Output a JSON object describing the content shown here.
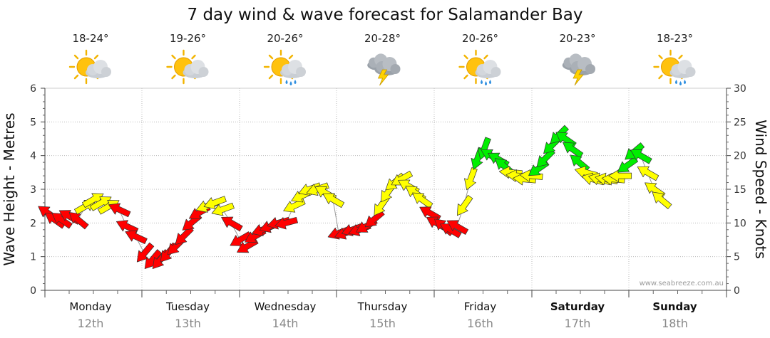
{
  "chart_data": {
    "type": "line",
    "title": "7 day wind & wave forecast for Salamander Bay",
    "ylabel_left": "Wave Height - Metres",
    "ylabel_right": "Wind Speed - Knots",
    "ylim_left": [
      0,
      6
    ],
    "ylim_right": [
      0,
      30
    ],
    "y_ticks_left": [
      "0",
      "1",
      "2",
      "3",
      "4",
      "5",
      "6"
    ],
    "y_ticks_right": [
      "0",
      "5",
      "10",
      "15",
      "20",
      "25",
      "30"
    ],
    "watermark": "www.seabreeze.com.au",
    "days": [
      {
        "name": "Monday",
        "date": "12th",
        "temp": "18-24°",
        "icon": "sun-cloud-icon",
        "bold": false
      },
      {
        "name": "Tuesday",
        "date": "13th",
        "temp": "19-26°",
        "icon": "sun-cloud-icon",
        "bold": false
      },
      {
        "name": "Wednesday",
        "date": "14th",
        "temp": "20-26°",
        "icon": "sun-rain-icon",
        "bold": false
      },
      {
        "name": "Thursday",
        "date": "15th",
        "temp": "20-28°",
        "icon": "thunderstorm-icon",
        "bold": false
      },
      {
        "name": "Friday",
        "date": "16th",
        "temp": "20-26°",
        "icon": "sun-rain-icon",
        "bold": false
      },
      {
        "name": "Saturday",
        "date": "17th",
        "temp": "20-23°",
        "icon": "thunderstorm-icon",
        "bold": true
      },
      {
        "name": "Sunday",
        "date": "18th",
        "temp": "18-23°",
        "icon": "sun-rain-icon",
        "bold": true
      }
    ],
    "wind_colors": {
      "light": "#ff0000",
      "moderate": "#ffff00",
      "strong": "#00ee00"
    },
    "wind_series": [
      {
        "day": 0.05,
        "knots": 11.5,
        "dir": 305,
        "cat": "light"
      },
      {
        "day": 0.12,
        "knots": 10.5,
        "dir": 305,
        "cat": "light"
      },
      {
        "day": 0.19,
        "knots": 10.5,
        "dir": 305,
        "cat": "light"
      },
      {
        "day": 0.27,
        "knots": 11.0,
        "dir": 300,
        "cat": "light"
      },
      {
        "day": 0.36,
        "knots": 10.5,
        "dir": 310,
        "cat": "light"
      },
      {
        "day": 0.44,
        "knots": 12.5,
        "dir": 60,
        "cat": "moderate"
      },
      {
        "day": 0.52,
        "knots": 13.5,
        "dir": 60,
        "cat": "moderate"
      },
      {
        "day": 0.6,
        "knots": 13.0,
        "dir": 60,
        "cat": "moderate"
      },
      {
        "day": 0.68,
        "knots": 12.5,
        "dir": 60,
        "cat": "moderate"
      },
      {
        "day": 0.78,
        "knots": 12.0,
        "dir": 295,
        "cat": "light"
      },
      {
        "day": 0.86,
        "knots": 9.5,
        "dir": 295,
        "cat": "light"
      },
      {
        "day": 0.95,
        "knots": 8.0,
        "dir": 295,
        "cat": "light"
      },
      {
        "day": 1.04,
        "knots": 5.5,
        "dir": 220,
        "cat": "light"
      },
      {
        "day": 1.12,
        "knots": 4.5,
        "dir": 220,
        "cat": "light"
      },
      {
        "day": 1.2,
        "knots": 4.5,
        "dir": 220,
        "cat": "light"
      },
      {
        "day": 1.28,
        "knots": 5.5,
        "dir": 220,
        "cat": "light"
      },
      {
        "day": 1.36,
        "knots": 6.5,
        "dir": 225,
        "cat": "light"
      },
      {
        "day": 1.44,
        "knots": 8.0,
        "dir": 225,
        "cat": "light"
      },
      {
        "day": 1.52,
        "knots": 10.0,
        "dir": 230,
        "cat": "light"
      },
      {
        "day": 1.6,
        "knots": 11.5,
        "dir": 240,
        "cat": "light"
      },
      {
        "day": 1.68,
        "knots": 12.5,
        "dir": 250,
        "cat": "moderate"
      },
      {
        "day": 1.76,
        "knots": 13.0,
        "dir": 250,
        "cat": "moderate"
      },
      {
        "day": 1.84,
        "knots": 12.0,
        "dir": 250,
        "cat": "moderate"
      },
      {
        "day": 1.93,
        "knots": 10.0,
        "dir": 300,
        "cat": "light"
      },
      {
        "day": 2.02,
        "knots": 7.5,
        "dir": 240,
        "cat": "light"
      },
      {
        "day": 2.09,
        "knots": 6.5,
        "dir": 240,
        "cat": "light"
      },
      {
        "day": 2.17,
        "knots": 8.0,
        "dir": 240,
        "cat": "light"
      },
      {
        "day": 2.25,
        "knots": 9.0,
        "dir": 250,
        "cat": "light"
      },
      {
        "day": 2.33,
        "knots": 9.5,
        "dir": 250,
        "cat": "light"
      },
      {
        "day": 2.41,
        "knots": 10.0,
        "dir": 255,
        "cat": "light"
      },
      {
        "day": 2.49,
        "knots": 10.0,
        "dir": 255,
        "cat": "light"
      },
      {
        "day": 2.57,
        "knots": 12.5,
        "dir": 245,
        "cat": "moderate"
      },
      {
        "day": 2.65,
        "knots": 14.0,
        "dir": 245,
        "cat": "moderate"
      },
      {
        "day": 2.73,
        "knots": 15.0,
        "dir": 250,
        "cat": "moderate"
      },
      {
        "day": 2.81,
        "knots": 15.0,
        "dir": 250,
        "cat": "moderate"
      },
      {
        "day": 2.89,
        "knots": 14.5,
        "dir": 300,
        "cat": "moderate"
      },
      {
        "day": 2.97,
        "knots": 13.5,
        "dir": 300,
        "cat": "moderate"
      },
      {
        "day": 3.03,
        "knots": 8.5,
        "dir": 250,
        "cat": "light"
      },
      {
        "day": 3.1,
        "knots": 8.5,
        "dir": 250,
        "cat": "light"
      },
      {
        "day": 3.17,
        "knots": 9.0,
        "dir": 250,
        "cat": "light"
      },
      {
        "day": 3.24,
        "knots": 9.0,
        "dir": 250,
        "cat": "light"
      },
      {
        "day": 3.31,
        "knots": 9.5,
        "dir": 240,
        "cat": "light"
      },
      {
        "day": 3.39,
        "knots": 10.5,
        "dir": 230,
        "cat": "light"
      },
      {
        "day": 3.46,
        "knots": 12.5,
        "dir": 215,
        "cat": "moderate"
      },
      {
        "day": 3.53,
        "knots": 14.5,
        "dir": 215,
        "cat": "moderate"
      },
      {
        "day": 3.6,
        "knots": 16.0,
        "dir": 230,
        "cat": "moderate"
      },
      {
        "day": 3.67,
        "knots": 16.5,
        "dir": 240,
        "cat": "moderate"
      },
      {
        "day": 3.74,
        "knots": 15.5,
        "dir": 300,
        "cat": "moderate"
      },
      {
        "day": 3.81,
        "knots": 14.5,
        "dir": 305,
        "cat": "moderate"
      },
      {
        "day": 3.88,
        "knots": 13.5,
        "dir": 305,
        "cat": "moderate"
      },
      {
        "day": 3.96,
        "knots": 11.5,
        "dir": 300,
        "cat": "light"
      },
      {
        "day": 4.03,
        "knots": 10.0,
        "dir": 300,
        "cat": "light"
      },
      {
        "day": 4.1,
        "knots": 9.5,
        "dir": 310,
        "cat": "light"
      },
      {
        "day": 4.17,
        "knots": 9.0,
        "dir": 300,
        "cat": "light"
      },
      {
        "day": 4.24,
        "knots": 9.5,
        "dir": 300,
        "cat": "light"
      },
      {
        "day": 4.31,
        "knots": 12.5,
        "dir": 215,
        "cat": "moderate"
      },
      {
        "day": 4.38,
        "knots": 16.5,
        "dir": 200,
        "cat": "moderate"
      },
      {
        "day": 4.45,
        "knots": 19.5,
        "dir": 200,
        "cat": "strong"
      },
      {
        "day": 4.52,
        "knots": 21.0,
        "dir": 200,
        "cat": "strong"
      },
      {
        "day": 4.59,
        "knots": 20.0,
        "dir": 300,
        "cat": "strong"
      },
      {
        "day": 4.66,
        "knots": 19.5,
        "dir": 300,
        "cat": "strong"
      },
      {
        "day": 4.72,
        "knots": 18.5,
        "dir": 310,
        "cat": "strong"
      },
      {
        "day": 4.79,
        "knots": 17.5,
        "dir": 275,
        "cat": "moderate"
      },
      {
        "day": 4.86,
        "knots": 17.0,
        "dir": 275,
        "cat": "moderate"
      },
      {
        "day": 4.93,
        "knots": 16.5,
        "dir": 275,
        "cat": "moderate"
      },
      {
        "day": 5.0,
        "knots": 17.0,
        "dir": 275,
        "cat": "moderate"
      },
      {
        "day": 5.07,
        "knots": 18.0,
        "dir": 235,
        "cat": "strong"
      },
      {
        "day": 5.14,
        "knots": 19.5,
        "dir": 225,
        "cat": "strong"
      },
      {
        "day": 5.21,
        "knots": 21.5,
        "dir": 225,
        "cat": "strong"
      },
      {
        "day": 5.28,
        "knots": 23.0,
        "dir": 225,
        "cat": "strong"
      },
      {
        "day": 5.35,
        "knots": 22.5,
        "dir": 305,
        "cat": "strong"
      },
      {
        "day": 5.42,
        "knots": 21.0,
        "dir": 305,
        "cat": "strong"
      },
      {
        "day": 5.49,
        "knots": 19.0,
        "dir": 310,
        "cat": "strong"
      },
      {
        "day": 5.56,
        "knots": 17.5,
        "dir": 285,
        "cat": "moderate"
      },
      {
        "day": 5.63,
        "knots": 16.5,
        "dir": 285,
        "cat": "moderate"
      },
      {
        "day": 5.7,
        "knots": 16.5,
        "dir": 285,
        "cat": "moderate"
      },
      {
        "day": 5.77,
        "knots": 16.5,
        "dir": 280,
        "cat": "moderate"
      },
      {
        "day": 5.84,
        "knots": 16.5,
        "dir": 275,
        "cat": "moderate"
      },
      {
        "day": 5.91,
        "knots": 17.0,
        "dir": 270,
        "cat": "moderate"
      },
      {
        "day": 5.98,
        "knots": 18.5,
        "dir": 235,
        "cat": "strong"
      },
      {
        "day": 6.05,
        "knots": 20.5,
        "dir": 230,
        "cat": "strong"
      },
      {
        "day": 6.12,
        "knots": 20.0,
        "dir": 300,
        "cat": "strong"
      },
      {
        "day": 6.19,
        "knots": 17.5,
        "dir": 300,
        "cat": "moderate"
      },
      {
        "day": 6.26,
        "knots": 15.0,
        "dir": 305,
        "cat": "moderate"
      },
      {
        "day": 6.33,
        "knots": 13.5,
        "dir": 310,
        "cat": "moderate"
      }
    ]
  }
}
